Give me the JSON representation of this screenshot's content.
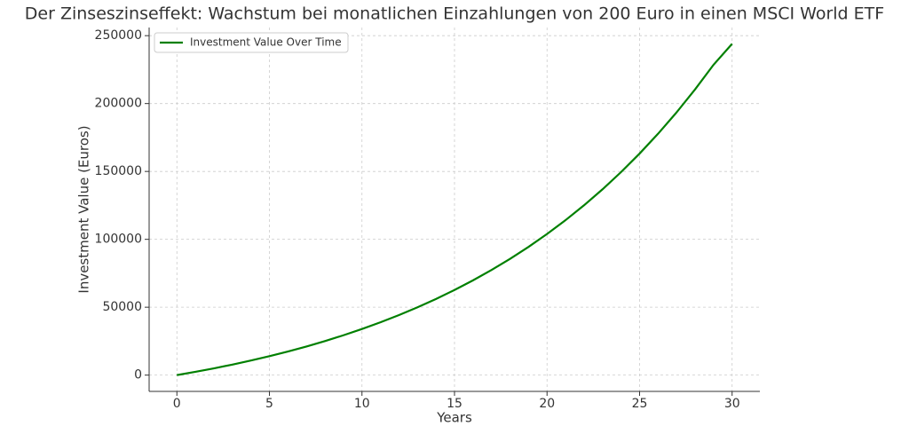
{
  "chart_data": {
    "type": "line",
    "title": "Der Zinseszinseffekt: Wachstum bei monatlichen Einzahlungen von 200 Euro in einen MSCI World ETF",
    "x_label": "Years",
    "y_label": "Investment Value (Euros)",
    "x": [
      0,
      1,
      2,
      3,
      4,
      5,
      6,
      7,
      8,
      9,
      10,
      11,
      12,
      13,
      14,
      15,
      16,
      17,
      18,
      19,
      20,
      21,
      22,
      23,
      24,
      25,
      26,
      27,
      28,
      29,
      30
    ],
    "series": [
      {
        "name": "Investment Value Over Time",
        "color": "#008000",
        "values": [
          0,
          2400,
          4980,
          7754,
          10735,
          13940,
          17386,
          21090,
          25072,
          29352,
          33953,
          38899,
          44216,
          49932,
          56077,
          62683,
          69784,
          77418,
          85624,
          94446,
          103929,
          114124,
          125083,
          136864,
          149529,
          163144,
          177780,
          193514,
          210428,
          228610,
          244000
        ]
      }
    ],
    "xlim": [
      -1.5,
      31.5
    ],
    "xticks": [
      0,
      5,
      10,
      15,
      20,
      25,
      30
    ],
    "ylim": [
      -12000,
      256000
    ],
    "yticks": [
      0,
      50000,
      100000,
      150000,
      200000,
      250000
    ],
    "grid": true,
    "legend": "upper left"
  }
}
